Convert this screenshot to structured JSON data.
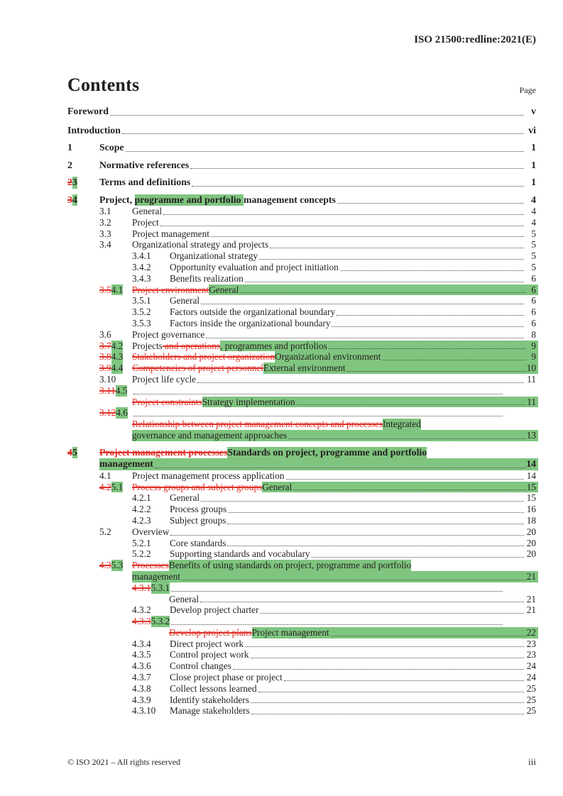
{
  "page": {
    "header": "ISO 21500:redline:2021(E)",
    "contents_title": "Contents",
    "page_label": "Page",
    "footer_left": "© ISO 2021 – All rights reserved",
    "footer_right": "iii"
  },
  "colors": {
    "insert_highlight_green": "#7fc57f",
    "delete_strikethrough_red": "#e0322a",
    "text": "#231f20"
  },
  "toc": {
    "rows": [
      {
        "st": "front",
        "num": [],
        "title": [
          [
            "Foreword",
            "p"
          ]
        ],
        "leader": "dots",
        "page": "v",
        "pg": false
      },
      {
        "st": "front",
        "num": [],
        "title": [
          [
            "Introduction",
            "p"
          ]
        ],
        "leader": "dots",
        "page": "vi",
        "pg": false
      },
      {
        "st": "l1",
        "num": [
          [
            "1",
            "p"
          ]
        ],
        "title": [
          [
            "Scope",
            "p"
          ]
        ],
        "leader": "dots",
        "page": "1",
        "pg": false
      },
      {
        "st": "l1",
        "num": [
          [
            "2",
            "p"
          ]
        ],
        "title": [
          [
            "Normative references",
            "p"
          ]
        ],
        "leader": "dots",
        "page": "1",
        "pg": false
      },
      {
        "st": "l1",
        "num": [
          [
            "2",
            "d"
          ],
          [
            "3",
            "i"
          ]
        ],
        "title": [
          [
            "Terms and definitions",
            "p"
          ]
        ],
        "leader": "dots",
        "page": "1",
        "pg": false
      },
      {
        "st": "l1",
        "num": [
          [
            "3",
            "d"
          ],
          [
            "4",
            "i"
          ]
        ],
        "title": [
          [
            "Project, ",
            "p"
          ],
          [
            "programme and portfolio ",
            "i"
          ],
          [
            "management concepts",
            "p"
          ]
        ],
        "leader": "dots",
        "page": "4",
        "pg": false
      },
      {
        "st": "l2",
        "num": [
          [
            "3.1",
            "p"
          ]
        ],
        "title": [
          [
            "General",
            "p"
          ]
        ],
        "leader": "dots",
        "page": "4",
        "pg": false
      },
      {
        "st": "l2",
        "num": [
          [
            "3.2",
            "p"
          ]
        ],
        "title": [
          [
            "Project",
            "p"
          ]
        ],
        "leader": "dots",
        "page": "4",
        "pg": false
      },
      {
        "st": "l2",
        "num": [
          [
            "3.3",
            "p"
          ]
        ],
        "title": [
          [
            "Project management",
            "p"
          ]
        ],
        "leader": "dots",
        "page": "5",
        "pg": false
      },
      {
        "st": "l2",
        "num": [
          [
            "3.4",
            "p"
          ]
        ],
        "title": [
          [
            "Organizational strategy and projects",
            "p"
          ]
        ],
        "leader": "dots",
        "page": "5",
        "pg": false
      },
      {
        "st": "l3",
        "num": [
          [
            "3.4.1",
            "p"
          ]
        ],
        "title": [
          [
            "Organizational strategy",
            "p"
          ]
        ],
        "leader": "dots",
        "page": "5",
        "pg": false
      },
      {
        "st": "l3",
        "num": [
          [
            "3.4.2",
            "p"
          ]
        ],
        "title": [
          [
            "Opportunity evaluation and project initiation",
            "p"
          ]
        ],
        "leader": "dots",
        "page": "5",
        "pg": false
      },
      {
        "st": "l3",
        "num": [
          [
            "3.4.3",
            "p"
          ]
        ],
        "title": [
          [
            "Benefits realization",
            "p"
          ]
        ],
        "leader": "dots",
        "page": "6",
        "pg": false
      },
      {
        "st": "l2",
        "num": [
          [
            "3.5",
            "d"
          ],
          [
            "4.1",
            "i"
          ]
        ],
        "title": [
          [
            "Project environment",
            "d"
          ],
          [
            "General",
            "i"
          ]
        ],
        "leader": "green",
        "page": "6",
        "pg": true
      },
      {
        "st": "l3",
        "num": [
          [
            "3.5.1",
            "p"
          ]
        ],
        "title": [
          [
            "General",
            "p"
          ]
        ],
        "leader": "dots",
        "page": "6",
        "pg": false
      },
      {
        "st": "l3",
        "num": [
          [
            "3.5.2",
            "p"
          ]
        ],
        "title": [
          [
            "Factors outside the organizational boundary",
            "p"
          ]
        ],
        "leader": "dots",
        "page": "6",
        "pg": false
      },
      {
        "st": "l3",
        "num": [
          [
            "3.5.3",
            "p"
          ]
        ],
        "title": [
          [
            "Factors inside the organizational boundary",
            "p"
          ]
        ],
        "leader": "dots",
        "page": "6",
        "pg": false
      },
      {
        "st": "l2",
        "num": [
          [
            "3.6",
            "p"
          ]
        ],
        "title": [
          [
            "Project governance",
            "p"
          ]
        ],
        "leader": "dots",
        "page": "8",
        "pg": false
      },
      {
        "st": "l2",
        "num": [
          [
            "3.7",
            "d"
          ],
          [
            "4.2",
            "i"
          ]
        ],
        "title": [
          [
            "Projects",
            "p"
          ],
          [
            " and operations",
            "d"
          ],
          [
            ", programmes and portfolios",
            "i"
          ]
        ],
        "leader": "green",
        "page": "9",
        "pg": true
      },
      {
        "st": "l2",
        "num": [
          [
            "3.8",
            "d"
          ],
          [
            "4.3",
            "i"
          ]
        ],
        "title": [
          [
            "Stakeholders and project organization",
            "d"
          ],
          [
            "Organizational environment",
            "i"
          ]
        ],
        "leader": "green",
        "page": "9",
        "pg": true
      },
      {
        "st": "l2",
        "num": [
          [
            "3.9",
            "d"
          ],
          [
            "4.4",
            "i"
          ]
        ],
        "title": [
          [
            "Competencies of project personnel",
            "d"
          ],
          [
            "External environment",
            "i"
          ]
        ],
        "leader": "green",
        "page": "10",
        "pg": true
      },
      {
        "st": "l2",
        "num": [
          [
            "3.10",
            "p"
          ]
        ],
        "title": [
          [
            "Project life cycle",
            "p"
          ]
        ],
        "leader": "dots",
        "page": "11",
        "pg": false
      },
      {
        "st": "l2",
        "num": [
          [
            "3.11",
            "d"
          ],
          [
            "4.5",
            "i"
          ]
        ],
        "title": [],
        "leader": "short",
        "page": "",
        "pg": false
      },
      {
        "st": "c2",
        "num": [],
        "title": [
          [
            "Project constraints",
            "d"
          ],
          [
            "Strategy implementation",
            "i"
          ]
        ],
        "leader": "green",
        "page": "11",
        "pg": true
      },
      {
        "st": "l2",
        "num": [
          [
            "3.12",
            "d"
          ],
          [
            "4.6",
            "i"
          ]
        ],
        "title": [],
        "leader": "short",
        "page": "",
        "pg": false
      },
      {
        "st": "c2",
        "num": [],
        "title": [
          [
            "Relationship between project management concepts and processes",
            "d"
          ],
          [
            "Integrated",
            "i"
          ]
        ],
        "leader": "none",
        "page": "",
        "pg": false
      },
      {
        "st": "c2",
        "num": [],
        "title": [
          [
            "governance and management approaches",
            "i"
          ]
        ],
        "leader": "green",
        "page": "13",
        "pg": true
      },
      {
        "st": "l1",
        "num": [
          [
            "4",
            "d"
          ],
          [
            "5",
            "i"
          ]
        ],
        "title": [
          [
            "Project management processes",
            "d"
          ],
          [
            "Standards on project, programme and portfolio",
            "i"
          ]
        ],
        "leader": "none",
        "page": "",
        "pg": false
      },
      {
        "st": "c1",
        "num": [],
        "title": [
          [
            "management",
            "i"
          ]
        ],
        "leader": "green",
        "page": "14",
        "pg": true
      },
      {
        "st": "l2",
        "num": [
          [
            "4.1",
            "p"
          ]
        ],
        "title": [
          [
            "Project management process application",
            "p"
          ]
        ],
        "leader": "dots",
        "page": "14",
        "pg": false
      },
      {
        "st": "l2",
        "num": [
          [
            "4.2",
            "d"
          ],
          [
            "5.1",
            "i"
          ]
        ],
        "title": [
          [
            "Process groups and subject groups",
            "d"
          ],
          [
            "General",
            "i"
          ]
        ],
        "leader": "green",
        "page": "15",
        "pg": true
      },
      {
        "st": "l3",
        "num": [
          [
            "4.2.1",
            "p"
          ]
        ],
        "title": [
          [
            "General",
            "p"
          ]
        ],
        "leader": "dots",
        "page": "15",
        "pg": false
      },
      {
        "st": "l3",
        "num": [
          [
            "4.2.2",
            "p"
          ]
        ],
        "title": [
          [
            "Process groups",
            "p"
          ]
        ],
        "leader": "dots",
        "page": "16",
        "pg": false
      },
      {
        "st": "l3",
        "num": [
          [
            "4.2.3",
            "p"
          ]
        ],
        "title": [
          [
            "Subject groups",
            "p"
          ]
        ],
        "leader": "dots",
        "page": "18",
        "pg": false
      },
      {
        "st": "l2",
        "num": [
          [
            "5.2",
            "p"
          ]
        ],
        "title": [
          [
            "Overview",
            "p"
          ]
        ],
        "leader": "dots",
        "page": "20",
        "pg": false
      },
      {
        "st": "l3",
        "num": [
          [
            "5.2.1",
            "p"
          ]
        ],
        "title": [
          [
            "Core standards",
            "p"
          ]
        ],
        "leader": "dots",
        "page": "20",
        "pg": false
      },
      {
        "st": "l3",
        "num": [
          [
            "5.2.2",
            "p"
          ]
        ],
        "title": [
          [
            "Supporting standards and vocabulary",
            "p"
          ]
        ],
        "leader": "dots",
        "page": "20",
        "pg": false
      },
      {
        "st": "l2",
        "num": [
          [
            "4.3",
            "d"
          ],
          [
            "5.3",
            "i"
          ]
        ],
        "title": [
          [
            "Processes",
            "d"
          ],
          [
            "Benefits of using standards on project, programme and portfolio",
            "i"
          ]
        ],
        "leader": "none",
        "page": "",
        "pg": false
      },
      {
        "st": "c2",
        "num": [],
        "title": [
          [
            "management",
            "i"
          ]
        ],
        "leader": "green",
        "page": "21",
        "pg": true
      },
      {
        "st": "l3",
        "num": [
          [
            "4.3.1",
            "d"
          ],
          [
            "5.3.1",
            "i"
          ]
        ],
        "title": [],
        "leader": "short",
        "page": "",
        "pg": false
      },
      {
        "st": "c3",
        "num": [],
        "title": [
          [
            "General",
            "p"
          ]
        ],
        "leader": "dots",
        "page": "21",
        "pg": false
      },
      {
        "st": "l3",
        "num": [
          [
            "4.3.2",
            "p"
          ]
        ],
        "title": [
          [
            "Develop project charter",
            "p"
          ]
        ],
        "leader": "dots",
        "page": "21",
        "pg": false
      },
      {
        "st": "l3",
        "num": [
          [
            "4.3.3",
            "d"
          ],
          [
            "5.3.2",
            "i"
          ]
        ],
        "title": [],
        "leader": "short",
        "page": "",
        "pg": false
      },
      {
        "st": "c3",
        "num": [],
        "title": [
          [
            "Develop project plans",
            "d"
          ],
          [
            "Project management",
            "i"
          ]
        ],
        "leader": "green",
        "page": "22",
        "pg": true
      },
      {
        "st": "l3",
        "num": [
          [
            "4.3.4",
            "p"
          ]
        ],
        "title": [
          [
            "Direct project work",
            "p"
          ]
        ],
        "leader": "dots",
        "page": "23",
        "pg": false
      },
      {
        "st": "l3",
        "num": [
          [
            "4.3.5",
            "p"
          ]
        ],
        "title": [
          [
            "Control project work",
            "p"
          ]
        ],
        "leader": "dots",
        "page": "23",
        "pg": false
      },
      {
        "st": "l3",
        "num": [
          [
            "4.3.6",
            "p"
          ]
        ],
        "title": [
          [
            "Control changes",
            "p"
          ]
        ],
        "leader": "dots",
        "page": "24",
        "pg": false
      },
      {
        "st": "l3",
        "num": [
          [
            "4.3.7",
            "p"
          ]
        ],
        "title": [
          [
            "Close project phase or project",
            "p"
          ]
        ],
        "leader": "dots",
        "page": "24",
        "pg": false
      },
      {
        "st": "l3",
        "num": [
          [
            "4.3.8",
            "p"
          ]
        ],
        "title": [
          [
            "Collect lessons learned",
            "p"
          ]
        ],
        "leader": "dots",
        "page": "25",
        "pg": false
      },
      {
        "st": "l3",
        "num": [
          [
            "4.3.9",
            "p"
          ]
        ],
        "title": [
          [
            "Identify stakeholders",
            "p"
          ]
        ],
        "leader": "dots",
        "page": "25",
        "pg": false
      },
      {
        "st": "l3",
        "num": [
          [
            "4.3.10",
            "p"
          ]
        ],
        "title": [
          [
            "Manage stakeholders",
            "p"
          ]
        ],
        "leader": "dots",
        "page": "25",
        "pg": false
      }
    ]
  }
}
